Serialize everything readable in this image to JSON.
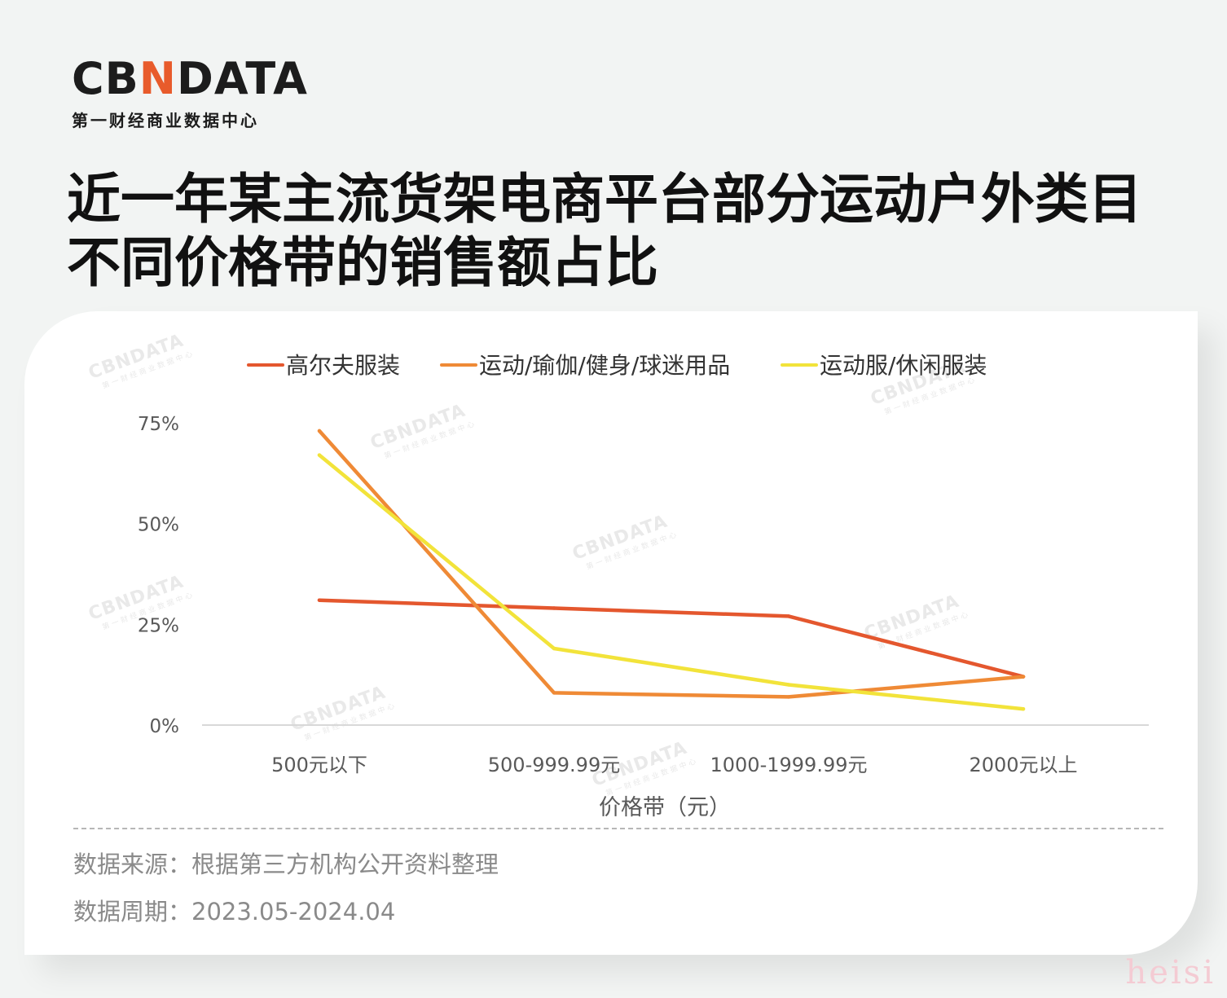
{
  "logo": {
    "main_left": "CB",
    "main_accent": "N",
    "main_right": "DATA",
    "sub": "第一财经商业数据中心"
  },
  "header": {
    "title": "近一年某主流货架电商平台部分运动户外类目不同价格带的销售额占比"
  },
  "watermark": {
    "main": "CBNDATA",
    "sub": "第一财经商业数据中心"
  },
  "chart_data": {
    "type": "line",
    "title": "",
    "xlabel": "价格带（元）",
    "ylabel": "",
    "categories": [
      "500元以下",
      "500-999.99元",
      "1000-1999.99元",
      "2000元以上"
    ],
    "ylim": [
      0,
      75
    ],
    "yticks": [
      "0%",
      "25%",
      "50%",
      "75%"
    ],
    "ytick_values": [
      0,
      25,
      50,
      75
    ],
    "grid": false,
    "legend_position": "top",
    "series": [
      {
        "name": "高尔夫服装",
        "color": "#e4572e",
        "values": [
          31,
          29,
          27,
          12
        ]
      },
      {
        "name": "运动/瑜伽/健身/球迷用品",
        "color": "#ef8a36",
        "values": [
          73,
          8,
          7,
          12
        ]
      },
      {
        "name": "运动服/休闲服装",
        "color": "#f2e33a",
        "values": [
          67,
          19,
          10,
          4
        ]
      }
    ]
  },
  "footer": {
    "source": "数据来源：根据第三方机构公开资料整理",
    "period": "数据周期：2023.05-2024.04"
  },
  "brand_mark": "heisi"
}
